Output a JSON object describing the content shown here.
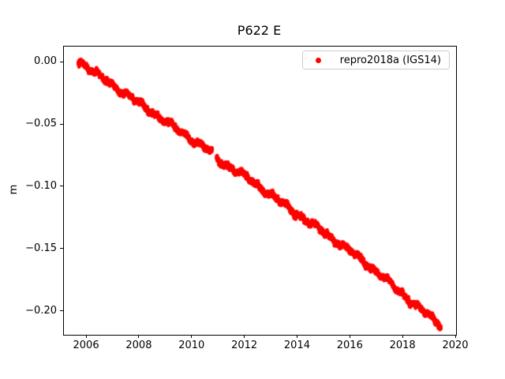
{
  "chart_data": {
    "type": "scatter",
    "title": "P622 E",
    "xlabel": "",
    "ylabel": "m",
    "grid": false,
    "legend": {
      "position": "upper right",
      "entries": [
        {
          "label": "repro2018a (IGS14)",
          "marker": "dot",
          "color": "#ff0000"
        }
      ]
    },
    "xlim": [
      2005.13,
      2020.0
    ],
    "ylim": [
      -0.2184,
      0.0127
    ],
    "xticks": [
      {
        "value": 2006,
        "label": "2006"
      },
      {
        "value": 2008,
        "label": "2008"
      },
      {
        "value": 2010,
        "label": "2010"
      },
      {
        "value": 2012,
        "label": "2012"
      },
      {
        "value": 2014,
        "label": "2014"
      },
      {
        "value": 2016,
        "label": "2016"
      },
      {
        "value": 2018,
        "label": "2018"
      },
      {
        "value": 2020,
        "label": "2020"
      }
    ],
    "yticks": [
      {
        "value": 0.0,
        "label": "0.00"
      },
      {
        "value": -0.05,
        "label": "−0.05"
      },
      {
        "value": -0.1,
        "label": "−0.10"
      },
      {
        "value": -0.15,
        "label": "−0.15"
      },
      {
        "value": -0.2,
        "label": "−0.20"
      }
    ],
    "series": [
      {
        "name": "repro2018a (IGS14)",
        "color": "#ff0000",
        "marker_radius_px": 2.4,
        "sampling": {
          "start": 2005.68,
          "end": 2019.42,
          "interval_years": 0.0027397
        },
        "gaps": [
          [
            2010.75,
            2010.92
          ]
        ],
        "trend_points": [
          [
            2005.68,
            0.002
          ],
          [
            2006.0,
            -0.004
          ],
          [
            2007.0,
            -0.0185
          ],
          [
            2008.0,
            -0.033
          ],
          [
            2009.0,
            -0.0475
          ],
          [
            2010.0,
            -0.062
          ],
          [
            2010.75,
            -0.072
          ],
          [
            2010.92,
            -0.0775
          ],
          [
            2011.0,
            -0.0785
          ],
          [
            2012.0,
            -0.0915
          ],
          [
            2013.0,
            -0.1065
          ],
          [
            2014.0,
            -0.122
          ],
          [
            2015.0,
            -0.1365
          ],
          [
            2016.0,
            -0.1515
          ],
          [
            2017.0,
            -0.168
          ],
          [
            2018.0,
            -0.1865
          ],
          [
            2019.0,
            -0.2035
          ],
          [
            2019.42,
            -0.2105
          ]
        ],
        "noise": {
          "white_sigma_m": 0.001,
          "wiggle_amp_m": 0.0014,
          "seed": 42
        }
      }
    ]
  },
  "colors": {
    "accent": "#ff0000",
    "axis": "#000000",
    "legend_border": "#cccccc"
  }
}
